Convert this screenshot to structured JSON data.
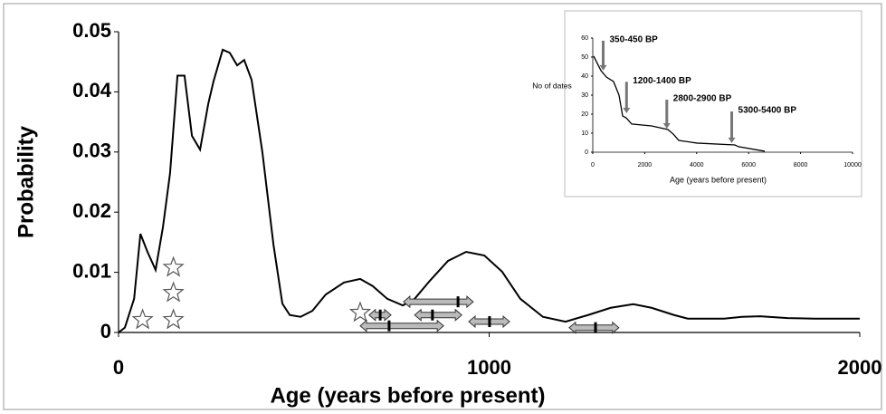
{
  "chart_data": [
    {
      "type": "line",
      "xlabel": "Age (years before present)",
      "ylabel": "Probability",
      "xlim": [
        0,
        2000
      ],
      "xticks": [
        0,
        1000,
        2000
      ],
      "ylim": [
        0,
        0.05
      ],
      "yticks": [
        0,
        0.01,
        0.02,
        0.03,
        0.04,
        0.05
      ],
      "series": [
        {
          "color": "#000000",
          "x": [
            0,
            17,
            42,
            59,
            78,
            100,
            120,
            139,
            159,
            178,
            198,
            220,
            242,
            256,
            281,
            300,
            320,
            339,
            359,
            388,
            418,
            442,
            462,
            491,
            523,
            559,
            608,
            652,
            686,
            725,
            767,
            799,
            840,
            889,
            938,
            987,
            1035,
            1084,
            1145,
            1206,
            1267,
            1328,
            1389,
            1438,
            1499,
            1536,
            1634,
            1682,
            1731,
            1805,
            1878,
            2000
          ],
          "values": [
            0,
            0.0008,
            0.0056,
            0.0164,
            0.0134,
            0.0104,
            0.0176,
            0.0265,
            0.0427,
            0.0427,
            0.0327,
            0.0304,
            0.038,
            0.0417,
            0.047,
            0.0465,
            0.0444,
            0.0453,
            0.042,
            0.03,
            0.0146,
            0.0048,
            0.0029,
            0.0026,
            0.0036,
            0.0063,
            0.0083,
            0.0089,
            0.0077,
            0.0056,
            0.0045,
            0.0056,
            0.0086,
            0.0119,
            0.0134,
            0.0128,
            0.0101,
            0.0056,
            0.0026,
            0.0018,
            0.0029,
            0.0041,
            0.0047,
            0.0041,
            0.0029,
            0.0023,
            0.0023,
            0.0026,
            0.0027,
            0.0024,
            0.0023,
            0.0023
          ]
        }
      ],
      "stars": {
        "x": [
          65,
          148,
          148,
          148,
          652
        ],
        "y": [
          0.0021,
          0.0021,
          0.0066,
          0.0108,
          0.0033
        ]
      },
      "ranges": {
        "start": [
          676,
          769,
          799,
          652,
          945,
          1216
        ],
        "end": [
          735,
          957,
          926,
          877,
          1055,
          1350
        ],
        "mid": [
          706,
          916,
          847,
          730,
          1001,
          1287
        ],
        "y": [
          0.0029,
          0.0051,
          0.0029,
          0.0011,
          0.0018,
          0.0008
        ]
      }
    },
    {
      "type": "line",
      "xlabel": "Age (years before present)",
      "ylabel": "No of dates",
      "xlim": [
        0,
        10000
      ],
      "xticks": [
        0,
        2000,
        4000,
        6000,
        8000,
        10000
      ],
      "ylim": [
        0,
        60
      ],
      "yticks": [
        0,
        10,
        20,
        30,
        40,
        50,
        60
      ],
      "series": [
        {
          "color": "#000000",
          "x": [
            35,
            174,
            314,
            523,
            801,
            1010,
            1150,
            1289,
            1498,
            2265,
            2892,
            3101,
            3310,
            4007,
            5470,
            5610,
            6620
          ],
          "values": [
            50.5,
            46.7,
            42.9,
            39.5,
            37.1,
            30,
            19,
            18,
            14.8,
            13.8,
            11.9,
            9.5,
            6.2,
            4.8,
            3.8,
            2.9,
            0.5
          ]
        }
      ],
      "annotations": [
        {
          "text": "350-450 BP",
          "x": 400,
          "y_top": 58.6,
          "y_tip": 42.9
        },
        {
          "text": "1200-1400 BP",
          "x": 1300,
          "y_top": 37,
          "y_tip": 20.5
        },
        {
          "text": "2800-2900 BP",
          "x": 2850,
          "y_top": 27.6,
          "y_tip": 12.4
        },
        {
          "text": "5300-5400 BP",
          "x": 5350,
          "y_top": 21.4,
          "y_tip": 4.8
        }
      ]
    }
  ]
}
